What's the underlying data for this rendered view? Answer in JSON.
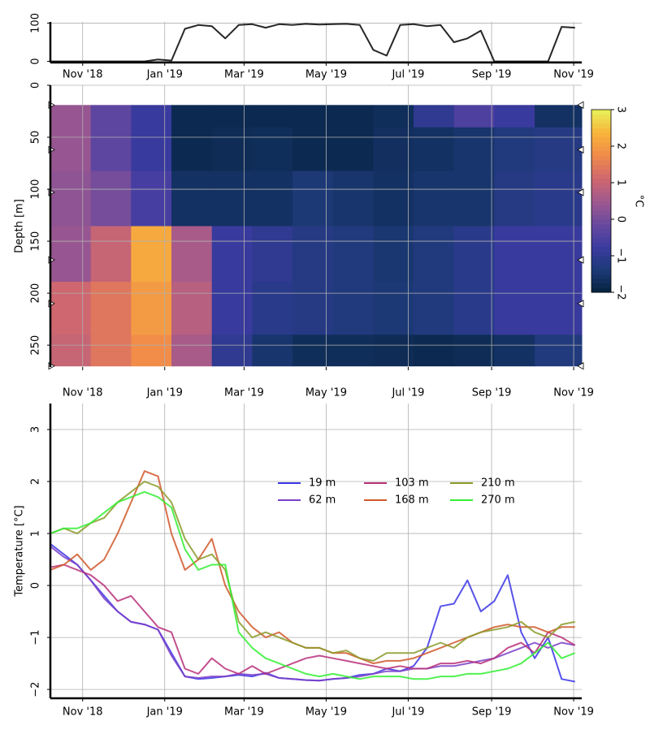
{
  "chart_data": [
    {
      "type": "line",
      "x": [
        -24,
        -14,
        -4,
        6,
        16,
        26,
        36,
        46,
        56,
        66,
        76,
        86,
        96,
        106,
        116,
        126,
        136,
        146,
        156,
        166,
        176,
        186,
        196,
        206,
        216,
        226,
        236,
        246,
        256,
        266,
        276,
        286,
        296,
        306,
        316,
        326,
        336,
        346,
        356,
        366
      ],
      "values": [
        0,
        0,
        0,
        0,
        0,
        0,
        0,
        0,
        5,
        2,
        85,
        95,
        92,
        60,
        95,
        97,
        88,
        97,
        95,
        98,
        96,
        97,
        98,
        95,
        30,
        15,
        95,
        97,
        92,
        95,
        50,
        60,
        80,
        0,
        0,
        0,
        0,
        0,
        90,
        88
      ],
      "color": "#000000",
      "xlim": [
        -24,
        371
      ],
      "xticks": [
        {
          "value": 0,
          "label": "Nov '18"
        },
        {
          "value": 61,
          "label": "Jan '19"
        },
        {
          "value": 120,
          "label": "Mar '19"
        },
        {
          "value": 181,
          "label": "May '19"
        },
        {
          "value": 242,
          "label": "Jul '19"
        },
        {
          "value": 304,
          "label": "Sep '19"
        },
        {
          "value": 365,
          "label": "Nov '19"
        }
      ],
      "ylim": [
        -3,
        103
      ],
      "yticks": [
        0,
        100
      ],
      "grid": true
    },
    {
      "type": "heatmap",
      "ylabel": "Depth [m]",
      "x": [
        -9,
        21,
        51,
        81,
        111,
        141,
        171,
        201,
        231,
        261,
        291,
        321,
        351
      ],
      "y": [
        19,
        62,
        103,
        168,
        210,
        270
      ],
      "z": [
        [
          0.4,
          -0.3,
          -0.8,
          -1.8,
          -1.8,
          -1.8,
          -1.8,
          -1.8,
          -1.7,
          -1.0,
          -0.5,
          -0.8,
          -1.6
        ],
        [
          0.4,
          -0.3,
          -0.8,
          -1.8,
          -1.75,
          -1.7,
          -1.8,
          -1.8,
          -1.65,
          -1.6,
          -1.5,
          -1.3,
          -1.2
        ],
        [
          0.3,
          0.0,
          -0.6,
          -1.6,
          -1.6,
          -1.6,
          -1.4,
          -1.5,
          -1.6,
          -1.5,
          -1.5,
          -1.2,
          -1.1
        ],
        [
          0.4,
          1.0,
          2.2,
          0.6,
          -0.8,
          -1.0,
          -1.2,
          -1.3,
          -1.45,
          -1.3,
          -1.1,
          -0.8,
          -0.8
        ],
        [
          1.1,
          1.4,
          2.0,
          0.8,
          -0.8,
          -1.1,
          -1.2,
          -1.3,
          -1.4,
          -1.3,
          -1.1,
          -0.8,
          -0.8
        ],
        [
          1.0,
          1.4,
          1.8,
          0.6,
          -1.0,
          -1.5,
          -1.7,
          -1.7,
          -1.75,
          -1.8,
          -1.75,
          -1.6,
          -1.3
        ]
      ],
      "xlim": [
        -24,
        371
      ],
      "xticks": [
        {
          "value": 0,
          "label": "Nov '18"
        },
        {
          "value": 61,
          "label": "Jan '19"
        },
        {
          "value": 120,
          "label": "Mar '19"
        },
        {
          "value": 181,
          "label": "May '19"
        },
        {
          "value": 242,
          "label": "Jul '19"
        },
        {
          "value": 304,
          "label": "Sep '19"
        },
        {
          "value": 365,
          "label": "Nov '19"
        }
      ],
      "ylim": [
        0,
        271
      ],
      "y_inverted": true,
      "yticks": [
        0,
        50,
        100,
        150,
        200,
        250
      ],
      "grid": true,
      "clim": [
        -2,
        3
      ],
      "colormap": [
        "#04223f",
        "#1d3a78",
        "#3b3aa0",
        "#6a4a9e",
        "#a0588e",
        "#d0686e",
        "#f08a4a",
        "#f8b53a",
        "#e8f25a"
      ],
      "cbar_label": "°C",
      "cbar_ticks": [
        {
          "value": -2,
          "label": "−2"
        },
        {
          "value": -1,
          "label": "−1"
        },
        0,
        1,
        2,
        3
      ]
    },
    {
      "type": "line",
      "ylabel": "Temperature [°C]",
      "x": [
        -24,
        -14,
        -4,
        6,
        16,
        26,
        36,
        46,
        56,
        66,
        76,
        86,
        96,
        106,
        116,
        126,
        136,
        146,
        156,
        166,
        176,
        186,
        196,
        206,
        216,
        226,
        236,
        246,
        256,
        266,
        276,
        286,
        296,
        306,
        316,
        326,
        336,
        346,
        356,
        366
      ],
      "series": [
        {
          "name": "19 m",
          "color": "#3b35e6",
          "values": [
            0.8,
            0.6,
            0.4,
            0.1,
            -0.2,
            -0.5,
            -0.7,
            -0.75,
            -0.85,
            -1.3,
            -1.75,
            -1.8,
            -1.78,
            -1.75,
            -1.72,
            -1.75,
            -1.68,
            -1.78,
            -1.8,
            -1.82,
            -1.83,
            -1.8,
            -1.78,
            -1.72,
            -1.7,
            -1.6,
            -1.65,
            -1.55,
            -1.2,
            -0.4,
            -0.35,
            0.1,
            -0.5,
            -0.3,
            0.2,
            -0.9,
            -1.4,
            -1.0,
            -1.8,
            -1.85
          ]
        },
        {
          "name": "62 m",
          "color": "#7a3ec8",
          "values": [
            0.75,
            0.55,
            0.4,
            0.1,
            -0.25,
            -0.5,
            -0.7,
            -0.75,
            -0.85,
            -1.35,
            -1.75,
            -1.78,
            -1.75,
            -1.75,
            -1.7,
            -1.72,
            -1.7,
            -1.78,
            -1.8,
            -1.82,
            -1.83,
            -1.8,
            -1.78,
            -1.75,
            -1.7,
            -1.65,
            -1.65,
            -1.6,
            -1.6,
            -1.55,
            -1.55,
            -1.5,
            -1.45,
            -1.4,
            -1.3,
            -1.2,
            -1.1,
            -1.2,
            -1.1,
            -1.15
          ]
        },
        {
          "name": "103 m",
          "color": "#b8307a",
          "values": [
            0.35,
            0.4,
            0.3,
            0.2,
            0.0,
            -0.3,
            -0.2,
            -0.5,
            -0.8,
            -0.9,
            -1.6,
            -1.7,
            -1.4,
            -1.6,
            -1.7,
            -1.55,
            -1.7,
            -1.6,
            -1.5,
            -1.4,
            -1.35,
            -1.4,
            -1.45,
            -1.5,
            -1.55,
            -1.6,
            -1.55,
            -1.6,
            -1.6,
            -1.5,
            -1.5,
            -1.45,
            -1.5,
            -1.4,
            -1.2,
            -1.1,
            -1.3,
            -0.9,
            -1.0,
            -1.15
          ]
        },
        {
          "name": "168 m",
          "color": "#d0582a",
          "values": [
            0.3,
            0.4,
            0.6,
            0.3,
            0.5,
            1.0,
            1.6,
            2.2,
            2.1,
            1.0,
            0.3,
            0.5,
            0.9,
            0.0,
            -0.5,
            -0.8,
            -1.0,
            -0.9,
            -1.1,
            -1.2,
            -1.2,
            -1.3,
            -1.3,
            -1.4,
            -1.5,
            -1.45,
            -1.45,
            -1.4,
            -1.3,
            -1.2,
            -1.1,
            -1.0,
            -0.9,
            -0.8,
            -0.75,
            -0.8,
            -0.8,
            -0.9,
            -0.8,
            -0.8
          ]
        },
        {
          "name": "210 m",
          "color": "#8c9a2a",
          "values": [
            1.0,
            1.1,
            1.0,
            1.2,
            1.3,
            1.6,
            1.8,
            2.0,
            1.9,
            1.6,
            0.9,
            0.5,
            0.6,
            0.3,
            -0.7,
            -1.0,
            -0.9,
            -1.0,
            -1.1,
            -1.2,
            -1.2,
            -1.3,
            -1.25,
            -1.4,
            -1.45,
            -1.3,
            -1.3,
            -1.3,
            -1.2,
            -1.1,
            -1.2,
            -1.0,
            -0.9,
            -0.85,
            -0.8,
            -0.7,
            -0.9,
            -1.0,
            -0.75,
            -0.7
          ]
        },
        {
          "name": "270 m",
          "color": "#33ee33",
          "values": [
            1.0,
            1.1,
            1.1,
            1.2,
            1.4,
            1.6,
            1.7,
            1.8,
            1.7,
            1.5,
            0.7,
            0.3,
            0.4,
            0.4,
            -0.9,
            -1.2,
            -1.4,
            -1.5,
            -1.6,
            -1.7,
            -1.75,
            -1.7,
            -1.75,
            -1.8,
            -1.75,
            -1.75,
            -1.75,
            -1.8,
            -1.8,
            -1.75,
            -1.75,
            -1.7,
            -1.7,
            -1.65,
            -1.6,
            -1.5,
            -1.3,
            -1.1,
            -1.4,
            -1.3
          ]
        }
      ],
      "xlim": [
        -24,
        371
      ],
      "xticks": [
        {
          "value": 0,
          "label": "Nov '18"
        },
        {
          "value": 61,
          "label": "Jan '19"
        },
        {
          "value": 120,
          "label": "Mar '19"
        },
        {
          "value": 181,
          "label": "May '19"
        },
        {
          "value": 242,
          "label": "Jul '19"
        },
        {
          "value": 304,
          "label": "Sep '19"
        },
        {
          "value": 365,
          "label": "Nov '19"
        }
      ],
      "ylim": [
        -2.17,
        3.5
      ],
      "yticks": [
        {
          "value": -2,
          "label": "−2"
        },
        {
          "value": -1,
          "label": "−1"
        },
        0,
        1,
        2,
        3
      ],
      "grid": true,
      "legend": "upper center"
    }
  ]
}
